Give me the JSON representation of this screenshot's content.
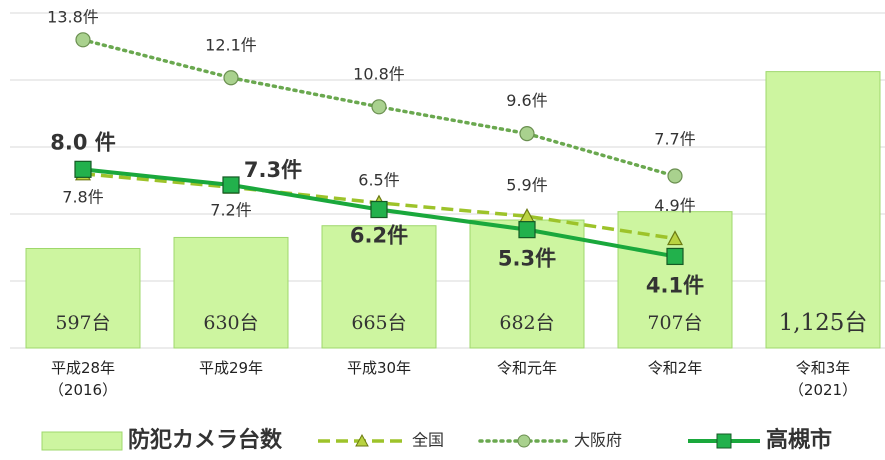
{
  "chart_data": {
    "type": "combo",
    "categories": [
      "平成28年\n（2016）",
      "平成29年",
      "平成30年",
      "令和元年",
      "令和2年",
      "令和3年\n（2021）"
    ],
    "ylim": [
      300,
      1300
    ],
    "yticks": [
      300,
      500,
      700,
      900,
      1100,
      1300
    ],
    "y2lim": [
      0,
      15
    ],
    "y2ticks": [
      0,
      3,
      6,
      9,
      12,
      15
    ],
    "grid": true,
    "series": [
      {
        "name": "防犯カメラ台数",
        "type": "bar",
        "axis": "y",
        "color": "#cdf5a0",
        "edge": "#9fd86c",
        "values": [
          597,
          630,
          665,
          682,
          707,
          1125
        ],
        "value_labels": [
          "597台",
          "630台",
          "665台",
          "682台",
          "707台",
          "1,125台"
        ],
        "value_label_colors": [
          "#333333",
          "#333333",
          "#333333",
          "#333333",
          "#333333",
          "#c00000"
        ]
      },
      {
        "name": "全国",
        "type": "line",
        "axis": "y2",
        "color": "#9dc32a",
        "dash": "dashed",
        "marker": "triangle",
        "values": [
          7.8,
          7.2,
          6.5,
          5.9,
          4.9,
          null
        ],
        "value_labels": [
          "7.8件",
          "7.2件",
          "6.5件",
          "5.9件",
          "4.9件",
          null
        ]
      },
      {
        "name": "大阪府",
        "type": "line",
        "axis": "y2",
        "color": "#6aa84f",
        "dash": "dotted",
        "marker": "circle",
        "values": [
          13.8,
          12.1,
          10.8,
          9.6,
          7.7,
          null
        ],
        "value_labels": [
          "13.8件",
          "12.1件",
          "10.8件",
          "9.6件",
          "7.7件",
          null
        ]
      },
      {
        "name": "高槻市",
        "type": "line",
        "axis": "y2",
        "color": "#1aa83c",
        "dash": "solid",
        "marker": "square",
        "values": [
          8.0,
          7.3,
          6.2,
          5.3,
          4.1,
          null
        ],
        "value_labels": [
          "8.0 件",
          "7.3件",
          "6.2件",
          "5.3件",
          "4.1件",
          null
        ]
      }
    ]
  }
}
